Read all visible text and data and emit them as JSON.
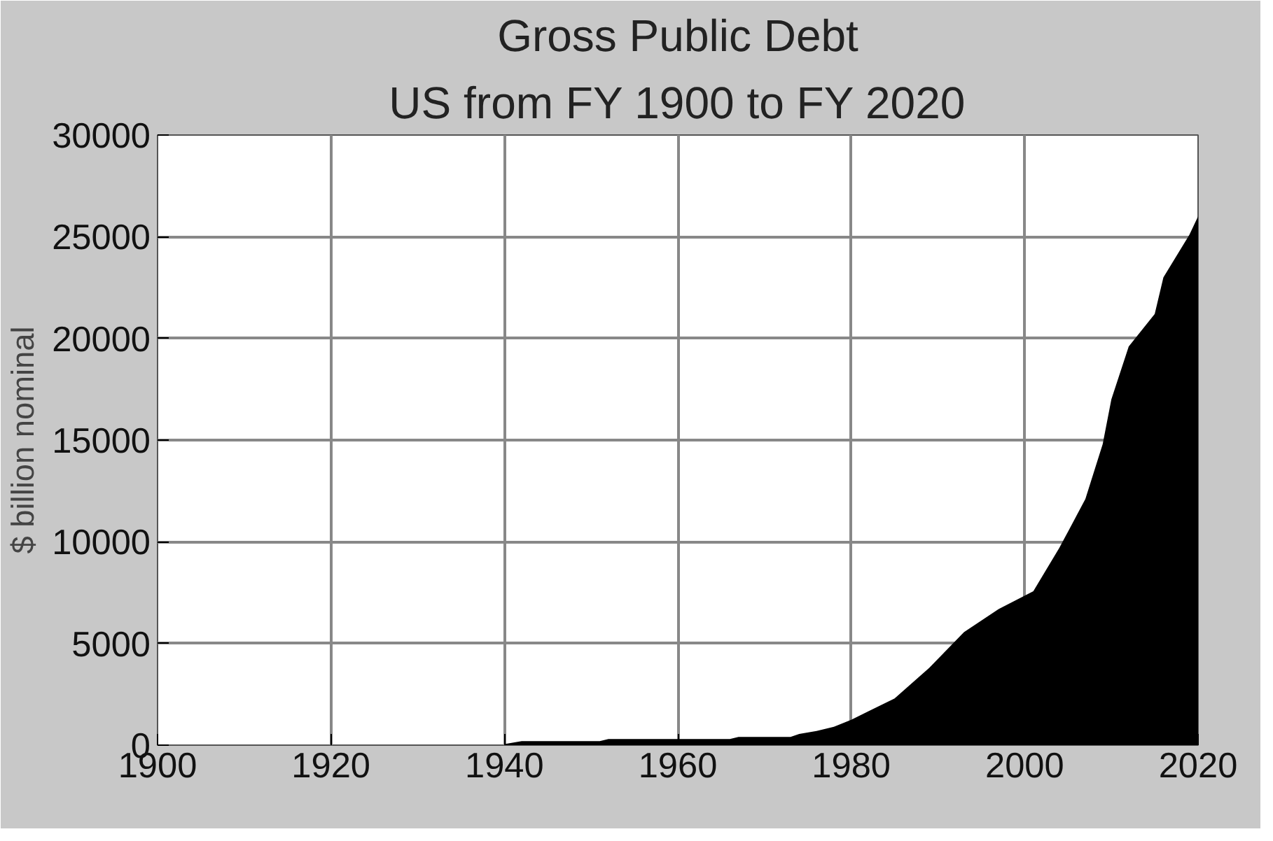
{
  "chart_data": {
    "type": "area",
    "title": "Gross Public Debt",
    "subtitle": "US from FY 1900 to FY 2020",
    "ylabel": "$ billion nominal",
    "x": [
      1940,
      1942,
      1951,
      1952,
      1966,
      1967,
      1973,
      1974,
      1976,
      1978,
      1980,
      1985,
      1989,
      1993,
      1997,
      2001,
      2004,
      2007,
      2009,
      2010,
      2012,
      2015,
      2016,
      2019,
      2020
    ],
    "series": [
      {
        "color": "#000000",
        "values": [
          50,
          200,
          200,
          300,
          300,
          400,
          400,
          550,
          700,
          900,
          1250,
          2300,
          3800,
          5560,
          6690,
          7570,
          9700,
          12100,
          14800,
          17000,
          19600,
          21200,
          23000,
          25100,
          26000
        ]
      }
    ],
    "xlim": [
      1900,
      2020
    ],
    "ylim": [
      0,
      30000
    ],
    "xticks": [
      1900,
      1920,
      1940,
      1960,
      1980,
      2000,
      2020
    ],
    "yticks": [
      0,
      5000,
      10000,
      15000,
      20000,
      25000,
      30000
    ],
    "grid": true
  }
}
